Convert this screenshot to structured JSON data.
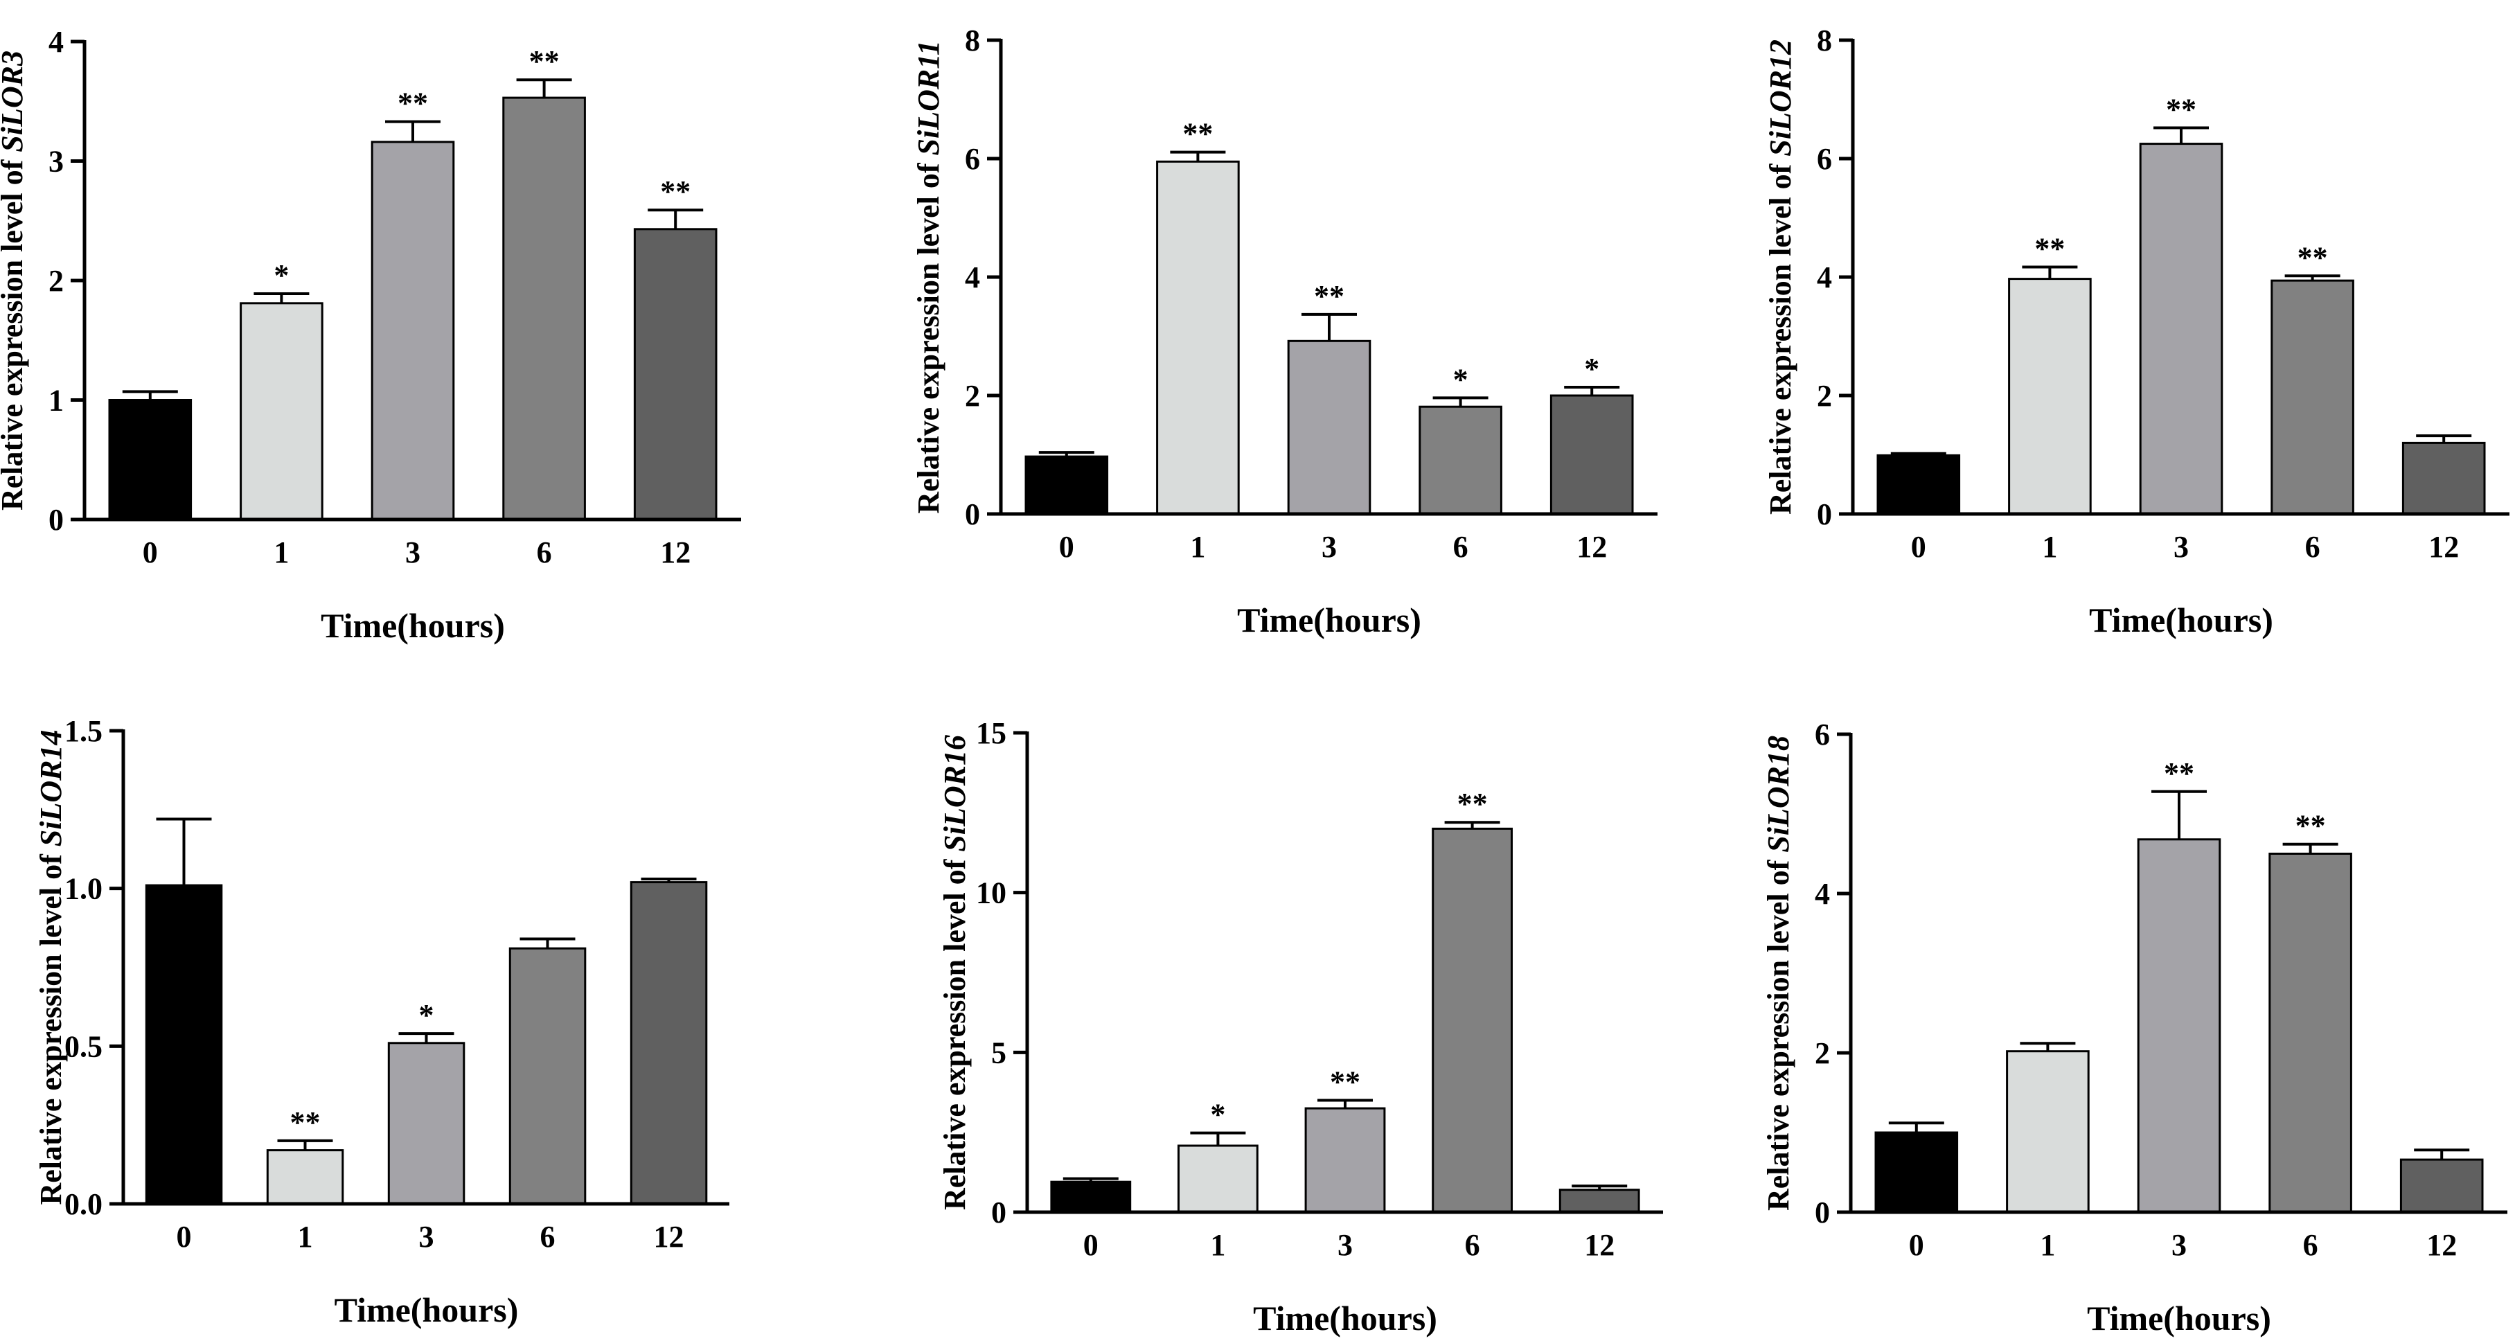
{
  "chart_data": [
    {
      "type": "bar",
      "categories": [
        "0",
        "1",
        "3",
        "6",
        "12"
      ],
      "values": [
        1.0,
        1.81,
        3.16,
        3.53,
        2.43
      ],
      "errors": [
        0.07,
        0.08,
        0.17,
        0.15,
        0.16
      ],
      "significance": [
        "",
        "*",
        "**",
        "**",
        "**"
      ],
      "ylabel_prefix": "Relative expression level of ",
      "ylabel_gene": "SiLOR3",
      "xlabel": "Time(hours)",
      "ylim": [
        0,
        4
      ],
      "yticks": [
        "0",
        "1",
        "2",
        "3",
        "4"
      ],
      "ytick_values": [
        0,
        1,
        2,
        3,
        4
      ],
      "grid": false
    },
    {
      "type": "bar",
      "categories": [
        "0",
        "1",
        "3",
        "6",
        "12"
      ],
      "values": [
        0.97,
        5.95,
        2.92,
        1.81,
        2.0
      ],
      "errors": [
        0.07,
        0.16,
        0.45,
        0.15,
        0.14
      ],
      "significance": [
        "",
        "**",
        "**",
        "*",
        "*"
      ],
      "ylabel_prefix": "Relative expression level of ",
      "ylabel_gene": "SiLOR11",
      "xlabel": "Time(hours)",
      "ylim": [
        0,
        8
      ],
      "yticks": [
        "0",
        "2",
        "4",
        "6",
        "8"
      ],
      "ytick_values": [
        0,
        2,
        4,
        6,
        8
      ],
      "grid": false
    },
    {
      "type": "bar",
      "categories": [
        "0",
        "1",
        "3",
        "6",
        "12"
      ],
      "values": [
        0.99,
        3.97,
        6.25,
        3.94,
        1.2
      ],
      "errors": [
        0.03,
        0.2,
        0.27,
        0.08,
        0.12
      ],
      "significance": [
        "",
        "**",
        "**",
        "**",
        ""
      ],
      "ylabel_prefix": "Relative expression level of ",
      "ylabel_gene": "SiLOR12",
      "xlabel": "Time(hours)",
      "ylim": [
        0,
        8
      ],
      "yticks": [
        "0",
        "2",
        "4",
        "6",
        "8"
      ],
      "ytick_values": [
        0,
        2,
        4,
        6,
        8
      ],
      "grid": false
    },
    {
      "type": "bar",
      "categories": [
        "0",
        "1",
        "3",
        "6",
        "12"
      ],
      "values": [
        1.01,
        0.17,
        0.51,
        0.81,
        1.02
      ],
      "errors": [
        0.21,
        0.03,
        0.03,
        0.03,
        0.01
      ],
      "significance": [
        "",
        "**",
        "*",
        "",
        ""
      ],
      "ylabel_prefix": "Relative expression level of ",
      "ylabel_gene": "SiLOR14",
      "xlabel": "Time(hours)",
      "ylim": [
        0,
        1.5
      ],
      "yticks": [
        "0.0",
        "0.5",
        "1.0",
        "1.5"
      ],
      "ytick_values": [
        0,
        0.5,
        1.0,
        1.5
      ],
      "grid": false
    },
    {
      "type": "bar",
      "categories": [
        "0",
        "1",
        "3",
        "6",
        "12"
      ],
      "values": [
        0.95,
        2.08,
        3.25,
        12.0,
        0.7
      ],
      "errors": [
        0.1,
        0.4,
        0.25,
        0.2,
        0.12
      ],
      "significance": [
        "",
        "*",
        "**",
        "**",
        ""
      ],
      "ylabel_prefix": "Relative expression level of ",
      "ylabel_gene": "SiLOR16",
      "xlabel": "Time(hours)",
      "ylim": [
        0,
        15
      ],
      "yticks": [
        "0",
        "5",
        "10",
        "15"
      ],
      "ytick_values": [
        0,
        5,
        10,
        15
      ],
      "grid": false
    },
    {
      "type": "bar",
      "categories": [
        "0",
        "1",
        "3",
        "6",
        "12"
      ],
      "values": [
        1.0,
        2.02,
        4.68,
        4.5,
        0.66
      ],
      "errors": [
        0.12,
        0.1,
        0.6,
        0.12,
        0.12
      ],
      "significance": [
        "",
        "",
        "**",
        "**",
        ""
      ],
      "ylabel_prefix": "Relative expression level of ",
      "ylabel_gene": "SiLOR18",
      "xlabel": "Time(hours)",
      "ylim": [
        0,
        6
      ],
      "yticks": [
        "0",
        "2",
        "4",
        "6"
      ],
      "ytick_values": [
        0,
        2,
        4,
        6
      ],
      "grid": false
    }
  ],
  "colors": {
    "bar_0": "#000000",
    "bar_1": "#d9dcdb",
    "bar_3": "#a4a3a8",
    "bar_6": "#818181",
    "bar_12": "#606060",
    "axis": "#000000"
  }
}
